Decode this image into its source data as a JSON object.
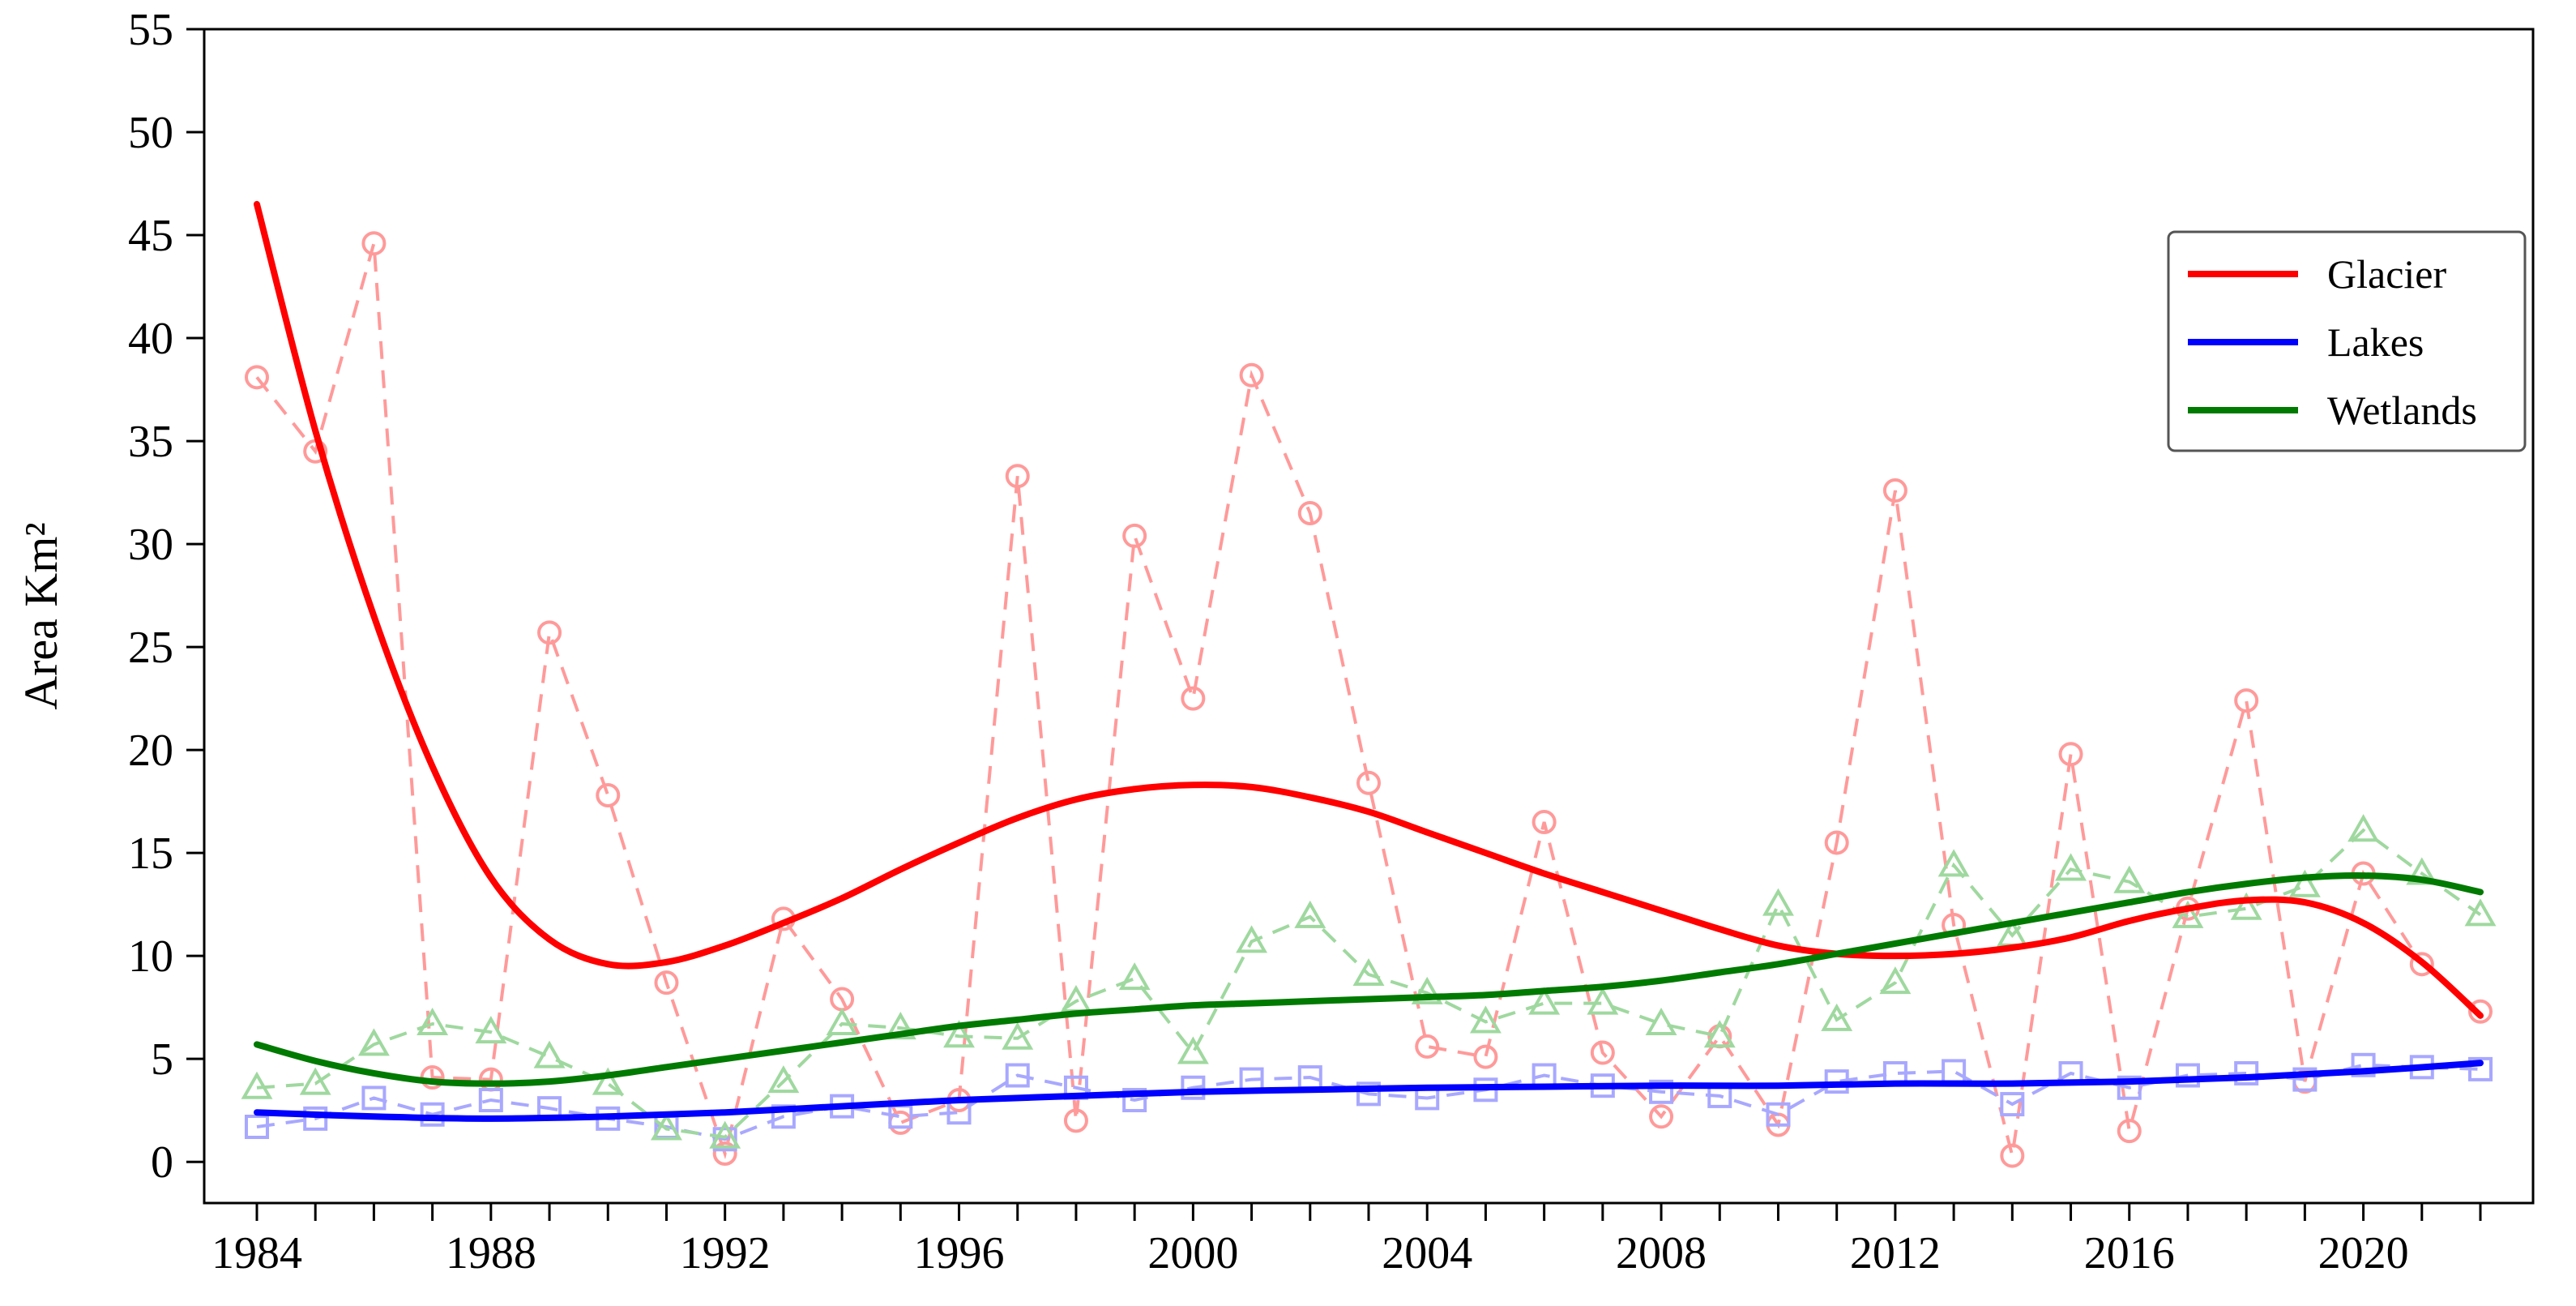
{
  "chart_data": {
    "type": "line",
    "ylabel": "Area Km²",
    "xlabel": "",
    "xlim": [
      1983.1,
      2022.9
    ],
    "ylim": [
      -2,
      55
    ],
    "x_ticks": [
      1984,
      1988,
      1992,
      1996,
      2000,
      2004,
      2008,
      2012,
      2016,
      2020
    ],
    "y_ticks": [
      0,
      5,
      10,
      15,
      20,
      25,
      30,
      35,
      40,
      45,
      50,
      55
    ],
    "legend_position": "top-right",
    "legend": [
      {
        "label": "Glacier",
        "color": "#ff0000"
      },
      {
        "label": "Lakes",
        "color": "#0000ff"
      },
      {
        "label": "Wetlands",
        "color": "#007a00"
      }
    ],
    "x": [
      1984,
      1985,
      1986,
      1987,
      1988,
      1989,
      1990,
      1991,
      1992,
      1993,
      1994,
      1995,
      1996,
      1997,
      1998,
      1999,
      2000,
      2001,
      2002,
      2003,
      2004,
      2005,
      2006,
      2007,
      2008,
      2009,
      2010,
      2011,
      2012,
      2013,
      2014,
      2015,
      2016,
      2017,
      2018,
      2019,
      2020,
      2021,
      2022
    ],
    "series": [
      {
        "name": "Glacier",
        "kind": "observed",
        "marker": "circle",
        "style": "dashed",
        "color": "#ff9a9a",
        "values": [
          38.1,
          34.5,
          44.6,
          4.1,
          4.0,
          25.7,
          17.8,
          8.7,
          0.4,
          11.8,
          7.9,
          1.9,
          3.0,
          33.3,
          2.0,
          30.4,
          22.5,
          38.2,
          31.5,
          18.4,
          5.6,
          5.1,
          16.5,
          5.3,
          2.2,
          6.1,
          1.8,
          15.5,
          32.6,
          11.5,
          0.3,
          19.8,
          1.5,
          12.3,
          22.4,
          3.9,
          14.0,
          9.6,
          7.3
        ]
      },
      {
        "name": "Lakes",
        "kind": "observed",
        "marker": "square",
        "style": "dashed",
        "color": "#a8a8ff",
        "values": [
          1.7,
          2.1,
          3.1,
          2.3,
          3.0,
          2.6,
          2.1,
          1.7,
          1.1,
          2.2,
          2.7,
          2.2,
          2.4,
          4.2,
          3.6,
          3.0,
          3.6,
          4.0,
          4.1,
          3.3,
          3.1,
          3.5,
          4.2,
          3.7,
          3.4,
          3.2,
          2.3,
          3.9,
          4.3,
          4.4,
          2.8,
          4.3,
          3.6,
          4.2,
          4.3,
          4.0,
          4.7,
          4.6,
          4.5
        ]
      },
      {
        "name": "Wetlands",
        "kind": "observed",
        "marker": "triangle",
        "style": "dashed",
        "color": "#9fd89f",
        "values": [
          3.6,
          3.8,
          5.7,
          6.7,
          6.3,
          5.1,
          3.8,
          1.6,
          1.2,
          3.9,
          6.7,
          6.5,
          6.1,
          6.0,
          7.8,
          8.9,
          5.3,
          10.7,
          11.9,
          9.1,
          8.2,
          6.8,
          7.7,
          7.7,
          6.7,
          6.1,
          12.5,
          6.9,
          8.7,
          14.4,
          11.0,
          14.2,
          13.6,
          11.9,
          12.3,
          13.4,
          16.1,
          14.0,
          12.0
        ]
      },
      {
        "name": "Glacier",
        "kind": "trend",
        "style": "solid",
        "color": "#ff0000",
        "points": [
          [
            1984,
            46.5
          ],
          [
            1985,
            35.5
          ],
          [
            1986,
            26.5
          ],
          [
            1987,
            19.2
          ],
          [
            1988,
            13.8
          ],
          [
            1989,
            10.8
          ],
          [
            1990,
            9.6
          ],
          [
            1991,
            9.7
          ],
          [
            1992,
            10.5
          ],
          [
            1993,
            11.6
          ],
          [
            1994,
            12.8
          ],
          [
            1995,
            14.2
          ],
          [
            1996,
            15.5
          ],
          [
            1997,
            16.7
          ],
          [
            1998,
            17.6
          ],
          [
            1999,
            18.1
          ],
          [
            2000,
            18.3
          ],
          [
            2001,
            18.2
          ],
          [
            2002,
            17.7
          ],
          [
            2003,
            17.0
          ],
          [
            2004,
            16.0
          ],
          [
            2005,
            15.0
          ],
          [
            2006,
            14.0
          ],
          [
            2007,
            13.1
          ],
          [
            2008,
            12.2
          ],
          [
            2009,
            11.3
          ],
          [
            2010,
            10.5
          ],
          [
            2011,
            10.1
          ],
          [
            2012,
            10.0
          ],
          [
            2013,
            10.1
          ],
          [
            2014,
            10.4
          ],
          [
            2015,
            10.9
          ],
          [
            2016,
            11.7
          ],
          [
            2017,
            12.3
          ],
          [
            2018,
            12.7
          ],
          [
            2019,
            12.6
          ],
          [
            2020,
            11.6
          ],
          [
            2021,
            9.7
          ],
          [
            2022,
            7.1
          ]
        ]
      },
      {
        "name": "Lakes",
        "kind": "trend",
        "style": "solid",
        "color": "#0000ff",
        "points": [
          [
            1984,
            2.4
          ],
          [
            1986,
            2.2
          ],
          [
            1988,
            2.1
          ],
          [
            1990,
            2.2
          ],
          [
            1992,
            2.4
          ],
          [
            1994,
            2.7
          ],
          [
            1996,
            3.0
          ],
          [
            1998,
            3.2
          ],
          [
            2000,
            3.4
          ],
          [
            2002,
            3.5
          ],
          [
            2004,
            3.6
          ],
          [
            2006,
            3.65
          ],
          [
            2008,
            3.7
          ],
          [
            2010,
            3.7
          ],
          [
            2012,
            3.8
          ],
          [
            2014,
            3.8
          ],
          [
            2016,
            3.9
          ],
          [
            2018,
            4.1
          ],
          [
            2020,
            4.4
          ],
          [
            2022,
            4.8
          ]
        ]
      },
      {
        "name": "Wetlands",
        "kind": "trend",
        "style": "solid",
        "color": "#007a00",
        "points": [
          [
            1984,
            5.7
          ],
          [
            1985,
            4.9
          ],
          [
            1986,
            4.3
          ],
          [
            1987,
            3.9
          ],
          [
            1988,
            3.8
          ],
          [
            1989,
            3.9
          ],
          [
            1990,
            4.2
          ],
          [
            1991,
            4.6
          ],
          [
            1992,
            5.0
          ],
          [
            1993,
            5.4
          ],
          [
            1994,
            5.8
          ],
          [
            1995,
            6.2
          ],
          [
            1996,
            6.6
          ],
          [
            1997,
            6.9
          ],
          [
            1998,
            7.2
          ],
          [
            1999,
            7.4
          ],
          [
            2000,
            7.6
          ],
          [
            2001,
            7.7
          ],
          [
            2002,
            7.8
          ],
          [
            2003,
            7.9
          ],
          [
            2004,
            8.0
          ],
          [
            2005,
            8.1
          ],
          [
            2006,
            8.3
          ],
          [
            2007,
            8.5
          ],
          [
            2008,
            8.8
          ],
          [
            2009,
            9.2
          ],
          [
            2010,
            9.6
          ],
          [
            2011,
            10.1
          ],
          [
            2012,
            10.6
          ],
          [
            2013,
            11.1
          ],
          [
            2014,
            11.6
          ],
          [
            2015,
            12.1
          ],
          [
            2016,
            12.6
          ],
          [
            2017,
            13.1
          ],
          [
            2018,
            13.5
          ],
          [
            2019,
            13.8
          ],
          [
            2020,
            13.9
          ],
          [
            2021,
            13.7
          ],
          [
            2022,
            13.1
          ]
        ]
      }
    ]
  }
}
